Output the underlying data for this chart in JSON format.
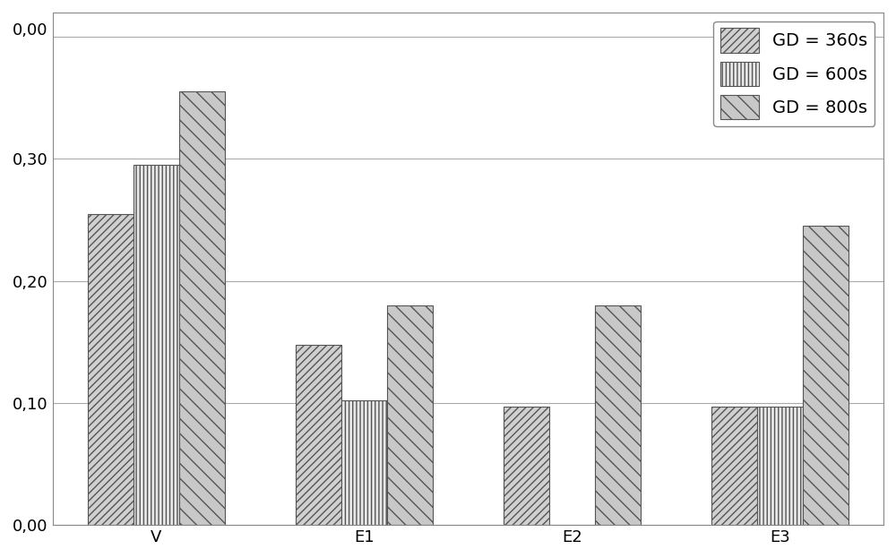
{
  "categories": [
    "V",
    "E1",
    "E2",
    "E3"
  ],
  "series": [
    {
      "label": "GD = 360s",
      "values": [
        0.255,
        0.148,
        0.097,
        0.097
      ],
      "hatch": "////",
      "facecolor": "#d0d0d0",
      "edgecolor": "#555555"
    },
    {
      "label": "GD = 600s",
      "values": [
        0.295,
        0.102,
        0.0,
        0.097
      ],
      "hatch": "||||",
      "facecolor": "#e8e8e8",
      "edgecolor": "#555555"
    },
    {
      "label": "GD = 800s",
      "values": [
        0.355,
        0.18,
        0.18,
        0.245
      ],
      "hatch": "\\\\",
      "facecolor": "#c8c8c8",
      "edgecolor": "#555555"
    }
  ],
  "ylim": [
    0.0,
    0.42
  ],
  "yticks": [
    0.0,
    0.1,
    0.2,
    0.3
  ],
  "ytick_labels": [
    "0,00",
    "0,10",
    "0,20",
    "0,30"
  ],
  "background_color": "#ffffff",
  "grid_color": "#aaaaaa",
  "bar_width": 0.22,
  "legend_fontsize": 14,
  "tick_fontsize": 13,
  "xlabel_fontsize": 13
}
